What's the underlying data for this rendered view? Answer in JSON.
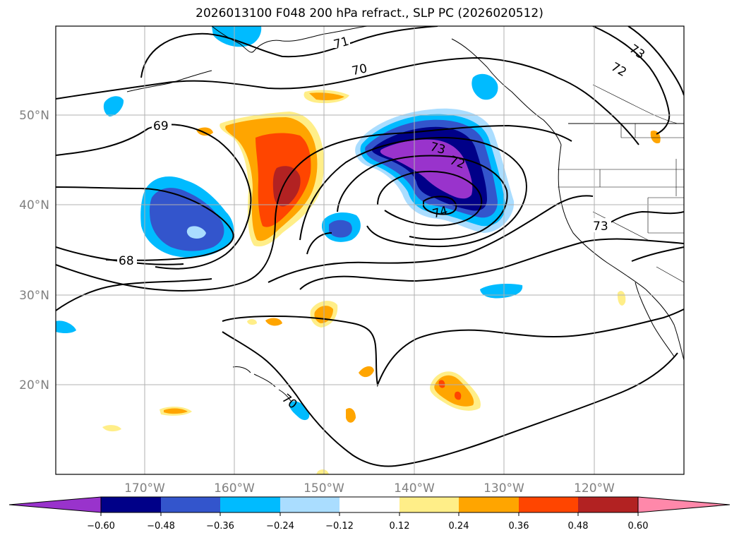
{
  "title": "2026013100 F048 200 hPa refract., SLP PC (2026020512)",
  "lat_labels": [
    "50°N",
    "40°N",
    "30°N",
    "20°N"
  ],
  "lon_labels": [
    "170°W",
    "160°W",
    "150°W",
    "140°W",
    "130°W",
    "120°W"
  ],
  "contour_labels": [
    "71",
    "70",
    "69",
    "68",
    "73",
    "72",
    "73",
    "74",
    "73",
    "72",
    "70"
  ],
  "colorbar": {
    "colors": [
      "#9933cc",
      "#000088",
      "#3355cc",
      "#00bbff",
      "#aaddff",
      "#ffffff",
      "#ffee88",
      "#ffa500",
      "#ff4500",
      "#b22222",
      "#ff88aa"
    ],
    "labels": [
      "−0.60",
      "−0.48",
      "−0.36",
      "−0.24",
      "−0.12",
      "0.12",
      "0.24",
      "0.36",
      "0.48",
      "0.60"
    ]
  },
  "colors": {
    "grid": "#b0b0b0",
    "contour": "#000000",
    "axis_labels": "#808080"
  }
}
